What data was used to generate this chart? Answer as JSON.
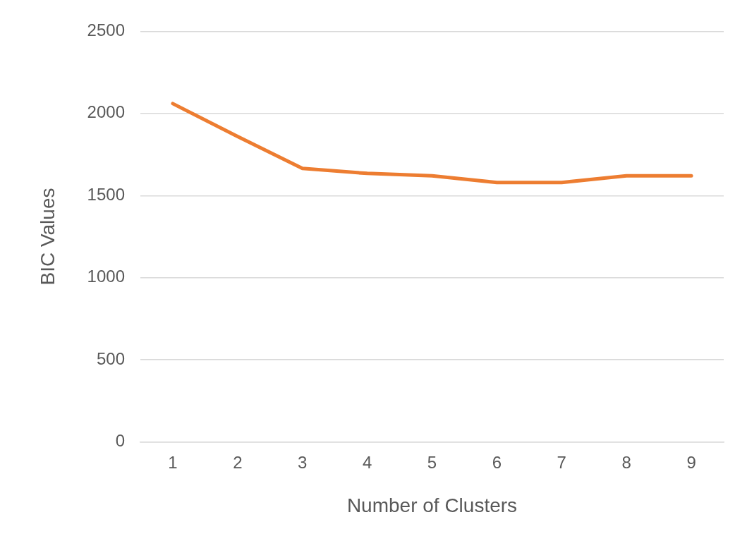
{
  "chart_data": {
    "type": "line",
    "xlabel": "Number of Clusters",
    "ylabel": "BIC Values",
    "categories": [
      "1",
      "2",
      "3",
      "4",
      "5",
      "6",
      "7",
      "8",
      "9"
    ],
    "series": [
      {
        "color": "#ed7d31",
        "values": [
          2060,
          1860,
          1665,
          1635,
          1620,
          1580,
          1580,
          1620,
          1620
        ]
      }
    ],
    "ylim": [
      0,
      2500
    ],
    "yticks": [
      0,
      500,
      1000,
      1500,
      2000,
      2500
    ],
    "grid": "y",
    "legend": false,
    "marker": "none",
    "line_style": "solid"
  }
}
